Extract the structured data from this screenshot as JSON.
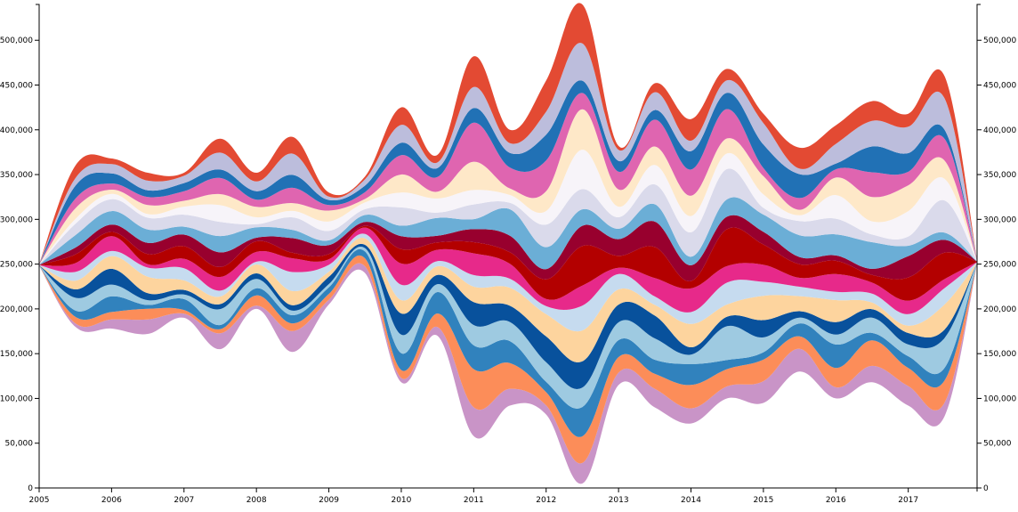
{
  "chart_data": {
    "type": "area",
    "subtype": "streamgraph",
    "title": "",
    "xlabel": "",
    "ylabel": "",
    "x_ticks": [
      "2005",
      "2006",
      "2007",
      "2008",
      "2009",
      "2010",
      "2011",
      "2012",
      "2013",
      "2014",
      "2015",
      "2016",
      "2017"
    ],
    "y_ticks": [
      "0",
      "50,000",
      "100,000",
      "150,000",
      "200,000",
      "250,000",
      "300,000",
      "350,000",
      "400,000",
      "450,000",
      "500,000"
    ],
    "y_tick_values": [
      0,
      50000,
      100000,
      150000,
      200000,
      250000,
      300000,
      350000,
      400000,
      450000,
      500000
    ],
    "ylim": [
      0,
      540000
    ],
    "xlim": [
      2005,
      2017.95
    ],
    "axes": [
      "left",
      "right",
      "bottom"
    ],
    "grid": false,
    "legend": "none",
    "x": [
      2005.0,
      2005.5,
      2006.0,
      2006.5,
      2007.0,
      2007.5,
      2008.0,
      2008.5,
      2009.0,
      2009.5,
      2010.0,
      2010.5,
      2011.0,
      2011.5,
      2012.0,
      2012.5,
      2013.0,
      2013.5,
      2014.0,
      2014.5,
      2015.0,
      2015.5,
      2016.0,
      2016.5,
      2017.0,
      2017.5,
      2017.95
    ],
    "baseline": [
      248000,
      180000,
      178000,
      172000,
      190000,
      155000,
      200000,
      152000,
      205000,
      240000,
      118000,
      170000,
      58000,
      92000,
      82000,
      5000,
      115000,
      90000,
      72000,
      100000,
      95000,
      130000,
      100000,
      118000,
      92000,
      80000,
      250000
    ],
    "top_envelope": [
      250000,
      360000,
      368000,
      352000,
      352000,
      390000,
      352000,
      392000,
      330000,
      348000,
      425000,
      372000,
      482000,
      400000,
      455000,
      540000,
      382000,
      452000,
      412000,
      468000,
      418000,
      380000,
      405000,
      432000,
      418000,
      460000,
      255000
    ],
    "palette": [
      "#c994c7",
      "#fc8d59",
      "#3182bd",
      "#9ecae1",
      "#08519c",
      "#fdd49e",
      "#c6dbef",
      "#e7298a",
      "#b30000",
      "#98002e",
      "#6baed6",
      "#dadaeb",
      "#f7f4f9",
      "#fee8c8",
      "#df65b0",
      "#2171b5",
      "#bcbddc",
      "#e34a33"
    ],
    "n_layers": 18
  }
}
